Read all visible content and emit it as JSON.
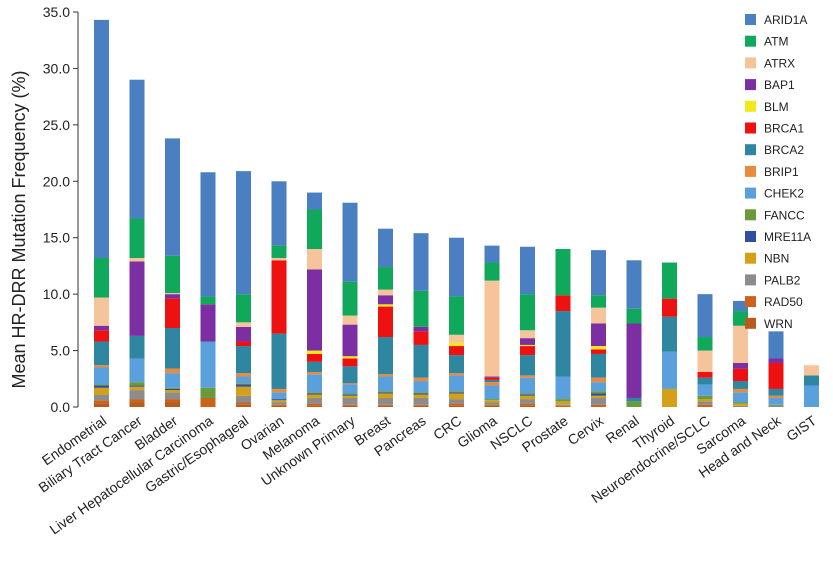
{
  "chart_data": {
    "type": "bar",
    "stacked": true,
    "title": "",
    "xlabel": "",
    "ylabel": "Mean HR-DRR Mutation Frequency (%)",
    "ylim": [
      0,
      35
    ],
    "yticks": [
      "0.0",
      "5.0",
      "10.0",
      "15.0",
      "20.0",
      "25.0",
      "30.0",
      "35.0"
    ],
    "grid": false,
    "legend_position": "top-right",
    "categories": [
      "Endometrial",
      "Biliary Tract Cancer",
      "Bladder",
      "Liver Hepatocellular Carcinoma",
      "Gastric/Esophageal",
      "Ovarian",
      "Melanoma",
      "Unknown Primary",
      "Breast",
      "Pancreas",
      "CRC",
      "Glioma",
      "NSCLC",
      "Prostate",
      "Cervix",
      "Renal",
      "Thyroid",
      "Neuroendocrine/SCLC",
      "Sarcoma",
      "Head and Neck",
      "GIST"
    ],
    "series": [
      {
        "name": "WRN",
        "color": "#b85c1e",
        "values": [
          0.3,
          0.4,
          0.4,
          0.0,
          0.2,
          0.1,
          0.1,
          0.1,
          0.1,
          0.1,
          0.1,
          0.1,
          0.1,
          0.0,
          0.0,
          0.0,
          0.0,
          0.0,
          0.0,
          0.0,
          0.0
        ]
      },
      {
        "name": "RAD50",
        "color": "#c9631d",
        "values": [
          0.3,
          0.3,
          0.3,
          0.8,
          0.2,
          0.1,
          0.2,
          0.1,
          0.1,
          0.1,
          0.2,
          0.1,
          0.2,
          0.1,
          0.2,
          0.0,
          0.0,
          0.2,
          0.0,
          0.0,
          0.0
        ]
      },
      {
        "name": "PALB2",
        "color": "#8c8c8c",
        "values": [
          0.5,
          0.8,
          0.6,
          0.0,
          0.6,
          0.2,
          0.5,
          0.6,
          0.6,
          0.6,
          0.4,
          0.2,
          0.4,
          0.1,
          0.6,
          0.0,
          0.0,
          0.3,
          0.1,
          0.1,
          0.0
        ]
      },
      {
        "name": "NBN",
        "color": "#d4a017",
        "values": [
          0.6,
          0.3,
          0.2,
          0.0,
          0.8,
          0.2,
          0.3,
          0.2,
          0.4,
          0.3,
          0.5,
          0.2,
          0.3,
          0.3,
          0.2,
          0.0,
          1.6,
          0.2,
          0.2,
          0.0,
          0.0
        ]
      },
      {
        "name": "MRE11A",
        "color": "#2f4f9e",
        "values": [
          0.2,
          0.1,
          0.1,
          0.0,
          0.2,
          0.1,
          0.1,
          0.1,
          0.1,
          0.1,
          0.1,
          0.0,
          0.1,
          0.0,
          0.2,
          0.0,
          0.0,
          0.0,
          0.0,
          0.0,
          0.0
        ]
      },
      {
        "name": "FANCC",
        "color": "#6a9a3a",
        "values": [
          0.1,
          0.3,
          0.1,
          0.9,
          0.1,
          0.0,
          0.1,
          0.1,
          0.1,
          0.1,
          0.1,
          0.1,
          0.1,
          0.2,
          0.2,
          0.5,
          0.0,
          0.3,
          0.1,
          0.1,
          0.0
        ]
      },
      {
        "name": "CHEK2",
        "color": "#5aa0dc",
        "values": [
          1.5,
          2.1,
          1.3,
          4.1,
          0.6,
          0.6,
          1.6,
          0.8,
          1.3,
          1.0,
          1.4,
          1.2,
          1.4,
          2.0,
          0.8,
          0.0,
          3.3,
          1.0,
          0.9,
          0.6,
          1.9
        ]
      },
      {
        "name": "BRIP1",
        "color": "#e98a3c",
        "values": [
          0.2,
          0.0,
          0.4,
          0.0,
          0.3,
          0.3,
          0.2,
          0.1,
          0.2,
          0.3,
          0.2,
          0.3,
          0.2,
          0.0,
          0.4,
          0.0,
          0.0,
          0.0,
          0.3,
          0.2,
          0.0
        ]
      },
      {
        "name": "BRCA2",
        "color": "#2e86a0",
        "values": [
          2.1,
          2.0,
          3.6,
          0.0,
          2.4,
          4.9,
          0.9,
          1.5,
          3.3,
          2.9,
          1.6,
          0.2,
          1.8,
          5.8,
          2.1,
          0.3,
          3.1,
          0.6,
          0.7,
          0.6,
          0.9
        ]
      },
      {
        "name": "BRCA1",
        "color": "#ee1111",
        "values": [
          1.0,
          0.0,
          2.6,
          0.0,
          0.4,
          6.5,
          0.7,
          0.7,
          2.7,
          1.2,
          0.8,
          0.2,
          0.8,
          1.4,
          0.4,
          0.0,
          1.6,
          0.5,
          1.1,
          2.3,
          0.0
        ]
      },
      {
        "name": "BLM",
        "color": "#f2e81a",
        "values": [
          0.0,
          0.0,
          0.0,
          0.0,
          0.0,
          0.0,
          0.3,
          0.2,
          0.2,
          0.0,
          0.3,
          0.0,
          0.1,
          0.0,
          0.3,
          0.0,
          0.0,
          0.0,
          0.0,
          0.0,
          0.0
        ]
      },
      {
        "name": "BAP1",
        "color": "#7b2fa3",
        "values": [
          0.4,
          6.6,
          0.4,
          3.3,
          1.3,
          0.0,
          7.2,
          2.8,
          0.8,
          0.4,
          0.0,
          0.1,
          0.6,
          0.0,
          2.0,
          6.6,
          0.0,
          0.0,
          0.5,
          0.4,
          0.0
        ]
      },
      {
        "name": "ATRX",
        "color": "#f6c49a",
        "values": [
          2.5,
          0.3,
          0.1,
          0.0,
          0.4,
          0.2,
          1.8,
          0.8,
          0.5,
          0.0,
          0.7,
          8.5,
          0.7,
          0.0,
          1.4,
          0.0,
          0.0,
          1.9,
          3.3,
          0.0,
          0.9
        ]
      },
      {
        "name": "ATM",
        "color": "#10a85a",
        "values": [
          3.5,
          3.5,
          3.3,
          0.7,
          2.5,
          1.1,
          3.5,
          3.0,
          2.0,
          3.2,
          3.4,
          1.6,
          3.2,
          4.1,
          1.1,
          1.3,
          3.2,
          1.2,
          1.3,
          0.0,
          0.0
        ]
      },
      {
        "name": "ARID1A",
        "color": "#4a7fc1",
        "values": [
          21.1,
          12.3,
          10.4,
          11.0,
          10.9,
          5.7,
          1.5,
          7.0,
          3.4,
          5.1,
          5.2,
          1.5,
          4.2,
          0.0,
          4.0,
          4.3,
          0.0,
          3.8,
          0.9,
          2.4,
          0.0
        ]
      }
    ],
    "legend_order": [
      "ARID1A",
      "ATM",
      "ATRX",
      "BAP1",
      "BLM",
      "BRCA1",
      "BRCA2",
      "BRIP1",
      "CHEK2",
      "FANCC",
      "MRE11A",
      "NBN",
      "PALB2",
      "RAD50",
      "WRN"
    ]
  }
}
